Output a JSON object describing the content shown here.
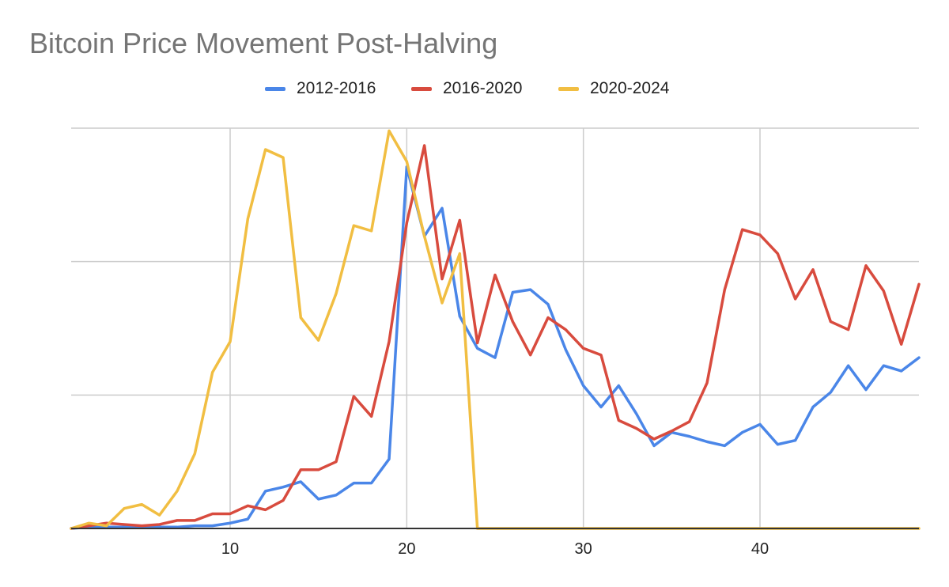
{
  "chart_data": {
    "type": "line",
    "title": "Bitcoin Price Movement Post-Halving",
    "xlabel": "",
    "ylabel": "",
    "xlim": [
      1,
      49
    ],
    "ylim": [
      0,
      3
    ],
    "x_ticks": [
      10,
      20,
      30,
      40
    ],
    "x_tick_labels": [
      "10",
      "20",
      "30",
      "40"
    ],
    "y_gridlines": [
      1,
      2,
      3
    ],
    "grid": true,
    "legend_position": "top",
    "x": [
      1,
      2,
      3,
      4,
      5,
      6,
      7,
      8,
      9,
      10,
      11,
      12,
      13,
      14,
      15,
      16,
      17,
      18,
      19,
      20,
      21,
      22,
      23,
      24,
      25,
      26,
      27,
      28,
      29,
      30,
      31,
      32,
      33,
      34,
      35,
      36,
      37,
      38,
      39,
      40,
      41,
      42,
      43,
      44,
      45,
      46,
      47,
      48,
      49
    ],
    "series": [
      {
        "name": "2012-2016",
        "color": "#4a86e8",
        "values": [
          0,
          0.01,
          0.01,
          0.01,
          0.01,
          0.01,
          0.01,
          0.02,
          0.02,
          0.04,
          0.07,
          0.28,
          0.31,
          0.35,
          0.22,
          0.25,
          0.34,
          0.34,
          0.52,
          2.71,
          2.19,
          2.4,
          1.59,
          1.35,
          1.28,
          1.77,
          1.79,
          1.68,
          1.34,
          1.07,
          0.91,
          1.07,
          0.86,
          0.62,
          0.72,
          0.69,
          0.65,
          0.62,
          0.72,
          0.78,
          0.63,
          0.66,
          0.91,
          1.02,
          1.22,
          1.04,
          1.22,
          1.18,
          1.28
        ]
      },
      {
        "name": "2016-2020",
        "color": "#d84b3e",
        "values": [
          0,
          0.02,
          0.04,
          0.03,
          0.02,
          0.03,
          0.06,
          0.06,
          0.11,
          0.11,
          0.17,
          0.14,
          0.21,
          0.44,
          0.44,
          0.5,
          0.99,
          0.84,
          1.4,
          2.29,
          2.87,
          1.87,
          2.31,
          1.39,
          1.9,
          1.55,
          1.3,
          1.58,
          1.49,
          1.35,
          1.3,
          0.81,
          0.75,
          0.67,
          0.73,
          0.8,
          1.09,
          1.79,
          2.24,
          2.2,
          2.06,
          1.72,
          1.94,
          1.55,
          1.49,
          1.97,
          1.78,
          1.38,
          1.83
        ]
      },
      {
        "name": "2020-2024",
        "color": "#f1be42",
        "values": [
          0,
          0.04,
          0.02,
          0.15,
          0.18,
          0.1,
          0.28,
          0.56,
          1.17,
          1.4,
          2.32,
          2.84,
          2.78,
          1.58,
          1.41,
          1.76,
          2.27,
          2.23,
          2.98,
          2.75,
          2.19,
          1.69,
          2.06,
          0,
          0,
          0,
          0,
          0,
          0,
          0,
          0,
          0,
          0,
          0,
          0,
          0,
          0,
          0,
          0,
          0,
          0,
          0,
          0,
          0,
          0,
          0,
          0,
          0,
          0
        ]
      }
    ]
  }
}
